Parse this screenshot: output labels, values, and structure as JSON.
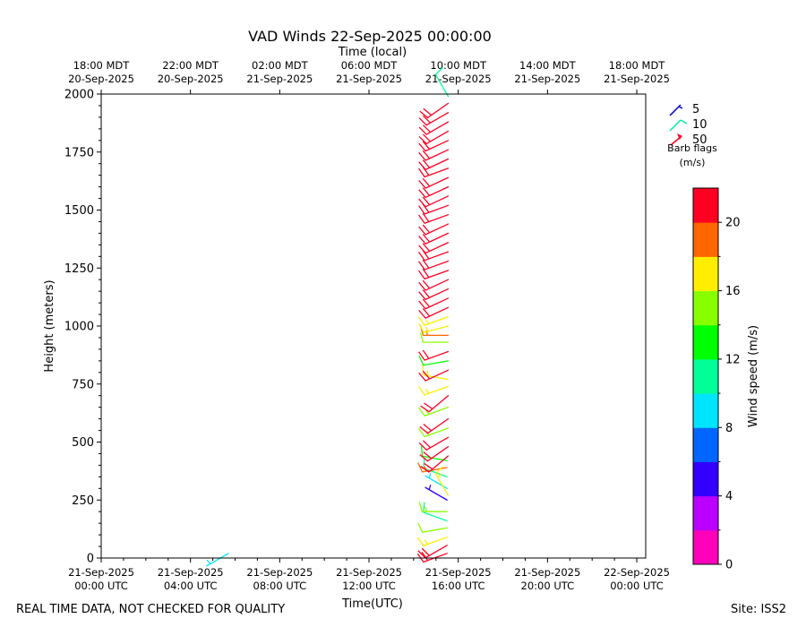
{
  "chart_data": {
    "type": "wind_barbs",
    "title": "VAD Winds 22-Sep-2025 00:00:00",
    "top_axis_label": "Time (local)",
    "xlabel": "Time(UTC)",
    "ylabel": "Height (meters)",
    "xlim_hours_utc": [
      0,
      24.4
    ],
    "ylim": [
      0,
      2000
    ],
    "y_ticks": [
      0,
      250,
      500,
      750,
      1000,
      1250,
      1500,
      1750,
      2000
    ],
    "x_ticks_utc": [
      {
        "hour": 0,
        "line1": "21-Sep-2025",
        "line2": "00:00 UTC"
      },
      {
        "hour": 4,
        "line1": "21-Sep-2025",
        "line2": "04:00 UTC"
      },
      {
        "hour": 8,
        "line1": "21-Sep-2025",
        "line2": "08:00 UTC"
      },
      {
        "hour": 12,
        "line1": "21-Sep-2025",
        "line2": "12:00 UTC"
      },
      {
        "hour": 16,
        "line1": "21-Sep-2025",
        "line2": "16:00 UTC"
      },
      {
        "hour": 20,
        "line1": "21-Sep-2025",
        "line2": "20:00 UTC"
      },
      {
        "hour": 24,
        "line1": "22-Sep-2025",
        "line2": "00:00 UTC"
      }
    ],
    "x_ticks_local": [
      {
        "hour": 0,
        "line1": "18:00 MDT",
        "line2": "20-Sep-2025"
      },
      {
        "hour": 4,
        "line1": "22:00 MDT",
        "line2": "20-Sep-2025"
      },
      {
        "hour": 8,
        "line1": "02:00 MDT",
        "line2": "21-Sep-2025"
      },
      {
        "hour": 12,
        "line1": "06:00 MDT",
        "line2": "21-Sep-2025"
      },
      {
        "hour": 16,
        "line1": "10:00 MDT",
        "line2": "21-Sep-2025"
      },
      {
        "hour": 20,
        "line1": "14:00 MDT",
        "line2": "21-Sep-2025"
      },
      {
        "hour": 24,
        "line1": "18:00 MDT",
        "line2": "21-Sep-2025"
      }
    ],
    "legend": {
      "entries": [
        {
          "label": "5",
          "speed": 5,
          "color": "#0000cc"
        },
        {
          "label": "10",
          "speed": 10,
          "color": "#00ee99"
        },
        {
          "label": "50",
          "speed": 50,
          "color": "#ff0022"
        }
      ],
      "caption_line1": "Barb flags",
      "caption_line2": "(m/s)",
      "placement": "right"
    },
    "colorbar": {
      "label": "Wind speed (m/s)",
      "range": [
        0,
        22
      ],
      "ticks": [
        0,
        4,
        8,
        12,
        16,
        20
      ],
      "colors": [
        "#ff00bb",
        "#bb00ff",
        "#3300ff",
        "#0066ff",
        "#00e5ff",
        "#00ff99",
        "#00ff00",
        "#88ff00",
        "#ffee00",
        "#ff6600",
        "#ff0022"
      ]
    },
    "profiles": [
      {
        "time_hours_utc": 5.7,
        "points": [
          {
            "height": 20,
            "speed": 8.5,
            "direction": 240
          }
        ]
      },
      {
        "time_hours_utc": 15.5,
        "points": [
          {
            "height": 20,
            "speed": 21,
            "direction": 250
          },
          {
            "height": 55,
            "speed": 20,
            "direction": 240
          },
          {
            "height": 90,
            "speed": 16,
            "direction": 250
          },
          {
            "height": 130,
            "speed": 14,
            "direction": 260
          },
          {
            "height": 160,
            "speed": 11,
            "direction": 290
          },
          {
            "height": 200,
            "speed": 15,
            "direction": 270
          },
          {
            "height": 250,
            "speed": 5,
            "direction": 300
          },
          {
            "height": 300,
            "speed": 9,
            "direction": 300
          },
          {
            "height": 350,
            "speed": 10,
            "direction": 290
          },
          {
            "height": 390,
            "speed": 18,
            "direction": 260
          },
          {
            "height": 420,
            "speed": 13,
            "direction": 280
          }
        ]
      },
      {
        "time_hours_utc": 15.55,
        "points": [
          {
            "height": 270,
            "speed": 17,
            "direction": 330
          },
          {
            "height": 440,
            "speed": 21,
            "direction": 230
          },
          {
            "height": 480,
            "speed": 21,
            "direction": 235
          },
          {
            "height": 520,
            "speed": 21,
            "direction": 240
          },
          {
            "height": 560,
            "speed": 15,
            "direction": 250
          },
          {
            "height": 600,
            "speed": 21,
            "direction": 235
          },
          {
            "height": 650,
            "speed": 15,
            "direction": 250
          },
          {
            "height": 700,
            "speed": 21,
            "direction": 230
          },
          {
            "height": 740,
            "speed": 17,
            "direction": 250
          },
          {
            "height": 770,
            "speed": 17,
            "direction": 280
          },
          {
            "height": 810,
            "speed": 21,
            "direction": 245
          },
          {
            "height": 850,
            "speed": 13,
            "direction": 260
          },
          {
            "height": 890,
            "speed": 21,
            "direction": 250
          },
          {
            "height": 930,
            "speed": 14,
            "direction": 270
          },
          {
            "height": 960,
            "speed": 19,
            "direction": 270
          },
          {
            "height": 1000,
            "speed": 17,
            "direction": 255
          },
          {
            "height": 1040,
            "speed": 17,
            "direction": 250
          },
          {
            "height": 1080,
            "speed": 21,
            "direction": 245
          },
          {
            "height": 1120,
            "speed": 21,
            "direction": 245
          },
          {
            "height": 1160,
            "speed": 21,
            "direction": 245
          },
          {
            "height": 1200,
            "speed": 21,
            "direction": 245
          },
          {
            "height": 1240,
            "speed": 21,
            "direction": 250
          },
          {
            "height": 1280,
            "speed": 21,
            "direction": 250
          },
          {
            "height": 1320,
            "speed": 21,
            "direction": 250
          },
          {
            "height": 1360,
            "speed": 21,
            "direction": 245
          },
          {
            "height": 1400,
            "speed": 21,
            "direction": 245
          },
          {
            "height": 1440,
            "speed": 21,
            "direction": 245
          },
          {
            "height": 1480,
            "speed": 21,
            "direction": 250
          },
          {
            "height": 1520,
            "speed": 21,
            "direction": 250
          },
          {
            "height": 1560,
            "speed": 21,
            "direction": 245
          },
          {
            "height": 1600,
            "speed": 21,
            "direction": 245
          },
          {
            "height": 1640,
            "speed": 21,
            "direction": 245
          },
          {
            "height": 1680,
            "speed": 21,
            "direction": 250
          },
          {
            "height": 1720,
            "speed": 21,
            "direction": 245
          },
          {
            "height": 1760,
            "speed": 21,
            "direction": 245
          },
          {
            "height": 1800,
            "speed": 21,
            "direction": 245
          },
          {
            "height": 1840,
            "speed": 21,
            "direction": 240
          },
          {
            "height": 1880,
            "speed": 21,
            "direction": 240
          },
          {
            "height": 1920,
            "speed": 21,
            "direction": 240
          },
          {
            "height": 1960,
            "speed": 21,
            "direction": 235
          },
          {
            "height": 1990,
            "speed": 11,
            "direction": 330
          }
        ]
      }
    ]
  },
  "footer": {
    "disclaimer": "REAL TIME DATA, NOT CHECKED FOR QUALITY",
    "site": "Site: ISS2"
  }
}
